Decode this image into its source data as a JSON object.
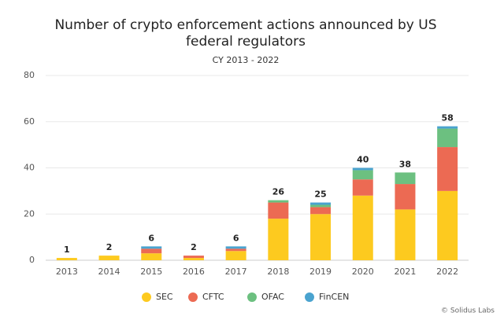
{
  "chart_data": {
    "type": "stacked-bar",
    "title": [
      "Number of crypto enforcement actions announced by US",
      "federal regulators"
    ],
    "subtitle": "CY 2013 - 2022",
    "source": "© Solidus Labs",
    "categories": [
      "2013",
      "2014",
      "2015",
      "2016",
      "2017",
      "2018",
      "2019",
      "2020",
      "2021",
      "2022"
    ],
    "series": [
      {
        "name": "SEC",
        "color": "#fdca1f",
        "values": [
          1,
          2,
          3,
          1,
          4,
          18,
          20,
          28,
          22,
          30
        ]
      },
      {
        "name": "CFTC",
        "color": "#ec6a53",
        "values": [
          0,
          0,
          2,
          1,
          1,
          7,
          3,
          7,
          11,
          19
        ]
      },
      {
        "name": "OFAC",
        "color": "#6cc080",
        "values": [
          0,
          0,
          0,
          0,
          0,
          1,
          1,
          4,
          5,
          8
        ]
      },
      {
        "name": "FinCEN",
        "color": "#4aa3cf",
        "values": [
          0,
          0,
          1,
          0,
          1,
          0,
          1,
          1,
          0,
          1
        ]
      }
    ],
    "totals": [
      1,
      2,
      6,
      2,
      6,
      26,
      25,
      40,
      38,
      58
    ],
    "ylim": [
      0,
      80
    ],
    "yticks": [
      0,
      20,
      40,
      60,
      80
    ],
    "grid": true,
    "legend": "bottom"
  }
}
